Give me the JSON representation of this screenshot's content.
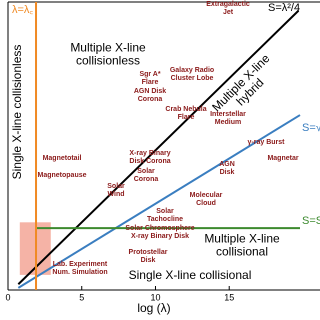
{
  "chart_data": {
    "type": "line",
    "xlabel": "log (λ)",
    "xlim": [
      0,
      19.8
    ],
    "ylim": [
      0,
      40
    ],
    "xticks": [
      0,
      5,
      10,
      15
    ],
    "series": [
      {
        "name": "S=λ²/4",
        "color": "#000000",
        "x": [
          0.7,
          19.7
        ],
        "values": [
          0.8,
          38.8
        ]
      },
      {
        "name": "S=√λ",
        "color": "#3a7ec0",
        "x": [
          0.7,
          19.8
        ],
        "values": [
          0.3,
          24.3
        ]
      },
      {
        "name": "S=S꜀",
        "color": "#3c8a2e",
        "x": [
          1.9,
          19.8
        ],
        "values": [
          8.6,
          8.6
        ]
      },
      {
        "name": "λ=λ꜀",
        "color": "#f08a24",
        "x": [
          1.9,
          1.9
        ],
        "values": [
          0,
          40
        ]
      }
    ],
    "shaded_region": {
      "x": [
        0.8,
        2.9
      ],
      "y": [
        2.1,
        9.4
      ],
      "color": "#f2a090"
    },
    "annotation_colors": {
      "object": "#8b1a1a",
      "regime": "#000000"
    },
    "annotations": [
      {
        "kind": "regime",
        "text": [
          "Multiple X-line",
          "collisionless"
        ]
      },
      {
        "kind": "regime",
        "text": [
          "Multiple X-line",
          "hybrid"
        ]
      },
      {
        "kind": "regime",
        "text": [
          "Multiple X-line",
          "collisional"
        ]
      },
      {
        "kind": "regime",
        "text": [
          "Single X-line collisional"
        ]
      },
      {
        "kind": "regime",
        "text": [
          "Single X-line collisionless"
        ]
      },
      {
        "kind": "object",
        "text": [
          "Extragalactic",
          "Jet"
        ]
      },
      {
        "kind": "object",
        "text": [
          "Sgr A*",
          "Flare"
        ]
      },
      {
        "kind": "object",
        "text": [
          "Galaxy Radio",
          "Cluster Lobe"
        ]
      },
      {
        "kind": "object",
        "text": [
          "AGN Disk",
          "Corona"
        ]
      },
      {
        "kind": "object",
        "text": [
          "Crab Nebula",
          "Flare"
        ]
      },
      {
        "kind": "object",
        "text": [
          "Interstellar",
          "Medium"
        ]
      },
      {
        "kind": "object",
        "text": [
          "Magnetotail"
        ]
      },
      {
        "kind": "object",
        "text": [
          "Magnetopause"
        ]
      },
      {
        "kind": "object",
        "text": [
          "X-ray Binary",
          "Disk Corona"
        ]
      },
      {
        "kind": "object",
        "text": [
          "γ-ray Burst"
        ]
      },
      {
        "kind": "object",
        "text": [
          "Magnetar"
        ]
      },
      {
        "kind": "object",
        "text": [
          "AGN",
          "Disk"
        ]
      },
      {
        "kind": "object",
        "text": [
          "Solar",
          "Corona"
        ]
      },
      {
        "kind": "object",
        "text": [
          "Solar",
          "Wind"
        ]
      },
      {
        "kind": "object",
        "text": [
          "Molecular",
          "Cloud"
        ]
      },
      {
        "kind": "object",
        "text": [
          "Solar",
          "Tachocline"
        ]
      },
      {
        "kind": "object",
        "text": [
          "Solar Chromosphere",
          "X-ray Binary Disk"
        ]
      },
      {
        "kind": "object",
        "text": [
          "Protostellar",
          "Disk"
        ]
      },
      {
        "kind": "object",
        "text": [
          "Lab. Experiment",
          "Num. Simulation"
        ]
      }
    ]
  }
}
